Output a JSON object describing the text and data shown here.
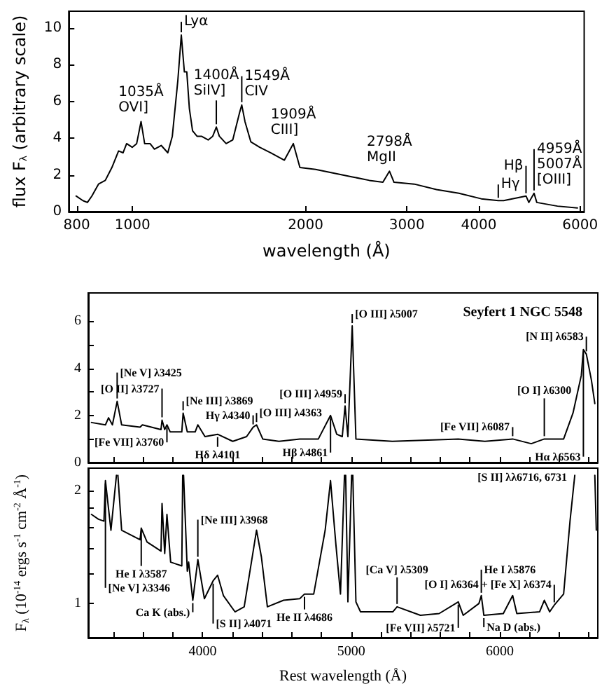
{
  "chart_data": [
    {
      "type": "line",
      "xlabel": "wavelength (Å)",
      "ylabel": "flux F$_{λ}$ (arbitrary scale)",
      "log": "x",
      "color": "#000000",
      "x": [
        798,
        820,
        835,
        850,
        873,
        897,
        921,
        946,
        963,
        977,
        999,
        1017,
        1035,
        1050,
        1073,
        1092,
        1122,
        1152,
        1173,
        1199,
        1216,
        1231,
        1243,
        1256,
        1272,
        1295,
        1318,
        1354,
        1379,
        1399,
        1416,
        1455,
        1494,
        1536,
        1549,
        1569,
        1606,
        1664,
        1740,
        1837,
        1904,
        1955,
        2082,
        2237,
        2403,
        2581,
        2725,
        2798,
        2849,
        3089,
        3378,
        3694,
        4040,
        4325,
        4419,
        4833,
        4888,
        4991,
        5046,
        5481,
        5938
      ],
      "values": [
        0.85,
        0.6,
        0.5,
        0.85,
        1.5,
        1.7,
        2.4,
        3.3,
        3.2,
        3.7,
        3.5,
        3.7,
        4.9,
        3.7,
        3.7,
        3.4,
        3.6,
        3.2,
        4.1,
        7.1,
        9.6,
        7.6,
        7.6,
        5.6,
        4.4,
        4.1,
        4.1,
        3.9,
        4.1,
        4.6,
        4.1,
        3.7,
        3.9,
        5.4,
        5.8,
        4.9,
        3.8,
        3.5,
        3.2,
        2.8,
        3.7,
        2.4,
        2.3,
        2.1,
        1.9,
        1.7,
        1.6,
        2.2,
        1.6,
        1.5,
        1.2,
        1.0,
        0.7,
        0.6,
        0.6,
        0.85,
        0.5,
        1.0,
        0.5,
        0.3,
        0.2
      ],
      "xlim": [
        775,
        6100
      ],
      "xticks": [
        800,
        1000,
        2000,
        3000,
        4000,
        6000
      ],
      "ylim": [
        0,
        10.9
      ],
      "yticks": [
        0,
        2,
        4,
        6,
        8,
        10
      ],
      "annotations": [
        {
          "text": "1035Å\nOVI]",
          "x": 1035,
          "y": 4.9
        },
        {
          "text": "Lyα",
          "x": 1216,
          "y": 9.6
        },
        {
          "text": "1400Å\nSiIV]",
          "x": 1399,
          "y": 4.6
        },
        {
          "text": "1549Å\nCIV",
          "x": 1549,
          "y": 5.8
        },
        {
          "text": "1909Å\nCIII]",
          "x": 1904,
          "y": 3.7
        },
        {
          "text": "2798Å\nMgII",
          "x": 2798,
          "y": 2.2
        },
        {
          "text": "Hγ",
          "x": 4325,
          "y": 0.6
        },
        {
          "text": "Hβ",
          "x": 4833,
          "y": 0.85
        },
        {
          "text": "4959Å\n5007Å\n[OIII]",
          "x": 4991,
          "y": 1.0
        }
      ]
    },
    {
      "type": "line",
      "title": "Seyfert 1 NGC 5548",
      "color": "#000000",
      "tick_labels": "y",
      "x": [
        3252,
        3346,
        3367,
        3393,
        3425,
        3455,
        3579,
        3595,
        3720,
        3727,
        3745,
        3760,
        3782,
        3860,
        3869,
        3897,
        3950,
        3968,
        4016,
        4101,
        4203,
        4296,
        4340,
        4363,
        4405,
        4514,
        4654,
        4779,
        4861,
        4903,
        4940,
        4959,
        4978,
        5007,
        5032,
        5277,
        5721,
        5900,
        6087,
        6212,
        6300,
        6367,
        6430,
        6493,
        6549,
        6563,
        6583,
        6617,
        6640
      ],
      "values": [
        1.7,
        1.6,
        1.9,
        1.6,
        2.6,
        1.6,
        1.5,
        1.6,
        1.4,
        1.8,
        1.4,
        1.6,
        1.3,
        1.3,
        2.1,
        1.3,
        1.3,
        1.6,
        1.1,
        1.2,
        0.9,
        1.1,
        1.5,
        1.6,
        1.0,
        0.9,
        1.0,
        1.0,
        2.0,
        1.2,
        1.1,
        2.4,
        1.1,
        5.8,
        1.0,
        0.9,
        1.0,
        0.9,
        1.0,
        0.8,
        1.0,
        1.0,
        1.0,
        2.1,
        3.7,
        4.8,
        4.6,
        3.5,
        2.5
      ],
      "xlim": [
        3230,
        6660
      ],
      "xticks": [
        {
          "value": 3400,
          "label": null
        },
        {
          "value": 3600,
          "label": null
        },
        {
          "value": 3800,
          "label": null
        },
        4000,
        {
          "value": 4200,
          "label": null
        },
        {
          "value": 4400,
          "label": null
        },
        {
          "value": 4600,
          "label": null
        },
        {
          "value": 4800,
          "label": null
        },
        5000,
        {
          "value": 5200,
          "label": null
        },
        {
          "value": 5400,
          "label": null
        },
        {
          "value": 5600,
          "label": null
        },
        {
          "value": 5800,
          "label": null
        },
        6000,
        {
          "value": 6200,
          "label": null
        },
        {
          "value": 6400,
          "label": null
        },
        {
          "value": 6600,
          "label": null
        }
      ],
      "ylim": [
        0,
        7.2
      ],
      "yticks": [
        0,
        {
          "value": 1,
          "label": null
        },
        2,
        {
          "value": 3,
          "label": null
        },
        4,
        {
          "value": 5,
          "label": null
        },
        6
      ],
      "annotations": [
        {
          "text": "[Ne V] λ3425",
          "x": 3425,
          "y": 2.6
        },
        {
          "text": "[O II] λ3727",
          "x": 3727,
          "y": 1.8
        },
        {
          "text": "[Fe VII] λ3760",
          "x": 3760,
          "y": 1.6
        },
        {
          "text": "[Ne III] λ3869",
          "x": 3869,
          "y": 2.1
        },
        {
          "text": "Hδ λ4101",
          "x": 4101,
          "y": 1.2
        },
        {
          "text": "Hγ λ4340",
          "x": 4340,
          "y": 1.5
        },
        {
          "text": "[O III] λ4363",
          "x": 4363,
          "y": 1.6
        },
        {
          "text": "Hβ λ4861",
          "x": 4861,
          "y": 2.0
        },
        {
          "text": "[O III] λ4959",
          "x": 4959,
          "y": 2.4
        },
        {
          "text": "[O III] λ5007",
          "x": 5007,
          "y": 5.8
        },
        {
          "text": "[Fe VII] λ6087",
          "x": 6087,
          "y": 1.0
        },
        {
          "text": "[O I] λ6300",
          "x": 6300,
          "y": 1.0
        },
        {
          "text": "Hα λ6563",
          "x": 6563,
          "y": 4.8
        },
        {
          "text": "[N II] λ6583",
          "x": 6583,
          "y": 4.6
        }
      ]
    },
    {
      "type": "line",
      "xlabel": "Rest wavelength (Å)",
      "ylabel": "F$_{λ}$ (10$^{-14}$ ergs s$^{-1}$ cm$^{-2}$ Å$^{-1}$)",
      "log": "y",
      "color": "#000000",
      "x": [
        3252,
        3299,
        3336,
        3346,
        3383,
        3420,
        3425,
        3430,
        3455,
        3579,
        3587,
        3626,
        3720,
        3727,
        3745,
        3760,
        3785,
        3860,
        3866,
        3869,
        3872,
        3897,
        3906,
        3934,
        3968,
        4012,
        4071,
        4101,
        4140,
        4218,
        4280,
        4343,
        4363,
        4396,
        4436,
        4545,
        4654,
        4686,
        4748,
        4825,
        4861,
        4897,
        4928,
        4955,
        4959,
        4963,
        4978,
        5003,
        5007,
        5011,
        5032,
        5063,
        5171,
        5280,
        5309,
        5466,
        5592,
        5721,
        5754,
        5860,
        5876,
        5893,
        6024,
        6087,
        6115,
        6268,
        6300,
        6336,
        6367,
        6430,
        6473,
        6505,
        6512,
        6635,
        6640,
        6650
      ],
      "values": [
        1.73,
        1.68,
        1.66,
        2.13,
        1.57,
        2.2,
        null,
        2.2,
        1.57,
        1.48,
        1.59,
        1.46,
        1.38,
        1.85,
        1.36,
        1.73,
        1.29,
        1.26,
        2.2,
        null,
        2.2,
        1.22,
        1.29,
        1.02,
        1.31,
        1.03,
        1.15,
        1.19,
        1.05,
        0.95,
        0.98,
        1.4,
        1.57,
        1.33,
        0.98,
        1.02,
        1.03,
        1.06,
        1.06,
        1.57,
        2.13,
        1.44,
        1.06,
        2.2,
        null,
        2.2,
        1.01,
        2.2,
        null,
        2.2,
        1.01,
        0.95,
        0.95,
        0.95,
        0.98,
        0.93,
        0.94,
        1.01,
        0.93,
        1.0,
        1.05,
        0.93,
        0.94,
        1.05,
        0.94,
        0.95,
        1.02,
        0.95,
        0.99,
        1.06,
        1.66,
        2.2,
        null,
        null,
        2.2,
        1.57
      ],
      "xlim": [
        3230,
        6660
      ],
      "xticks": [
        {
          "value": 3400,
          "label": null
        },
        {
          "value": 3600,
          "label": null
        },
        {
          "value": 3800,
          "label": null
        },
        4000,
        {
          "value": 4200,
          "label": null
        },
        {
          "value": 4400,
          "label": null
        },
        {
          "value": 4600,
          "label": null
        },
        {
          "value": 4800,
          "label": null
        },
        5000,
        {
          "value": 5200,
          "label": null
        },
        {
          "value": 5400,
          "label": null
        },
        {
          "value": 5600,
          "label": null
        },
        {
          "value": 5800,
          "label": null
        },
        6000,
        {
          "value": 6200,
          "label": null
        },
        {
          "value": 6400,
          "label": null
        },
        {
          "value": 6600,
          "label": null
        }
      ],
      "ylim": [
        0.81,
        2.3
      ],
      "yticks": [
        1,
        {
          "value": 1.2,
          "label": null
        },
        {
          "value": 1.4,
          "label": null
        },
        {
          "value": 1.6,
          "label": null
        },
        {
          "value": 1.8,
          "label": null
        },
        2
      ],
      "annotations": [
        {
          "text": "[Ne V] λ3346",
          "x": 3346,
          "y": 2.13
        },
        {
          "text": "He I λ3587",
          "x": 3587,
          "y": 1.59
        },
        {
          "text": "Ca K (abs.)",
          "x": 3934,
          "y": 1.02
        },
        {
          "text": "[Ne III] λ3968",
          "x": 3968,
          "y": 1.31
        },
        {
          "text": "[S II] λ4071",
          "x": 4071,
          "y": 1.15
        },
        {
          "text": "He II λ4686",
          "x": 4686,
          "y": 1.06
        },
        {
          "text": "[Ca V] λ5309",
          "x": 5309,
          "y": 0.98
        },
        {
          "text": "[Fe VII] λ5721",
          "x": 5721,
          "y": 1.01
        },
        {
          "text": "He I λ5876",
          "x": 5876,
          "y": 1.05
        },
        {
          "text": "Na D (abs.)",
          "x": 5893,
          "y": 0.93
        },
        {
          "text": "[O I] λ6364 + [Fe X] λ6374",
          "x": 6367,
          "y": 0.99
        },
        "[S II] λλ6716, 6731"
      ]
    }
  ]
}
